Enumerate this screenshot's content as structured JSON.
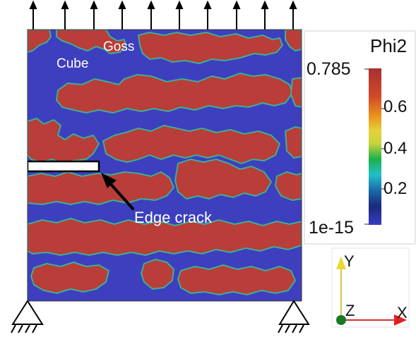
{
  "labels": {
    "goss": "Goss",
    "cube": "Cube",
    "crack": "Edge crack"
  },
  "colorbar": {
    "title": "Phi2",
    "max": "0.785",
    "min": "1e-15",
    "ticks": [
      "0.6",
      "0.4",
      "0.2"
    ]
  },
  "axes": {
    "y": "Y",
    "z": "Z",
    "x": "X"
  },
  "colors": {
    "cube_phase": "#3d3fbf",
    "goss_phase": "#b93d39",
    "boundary": "#3fae94",
    "crack_fill": "#ffffff"
  }
}
